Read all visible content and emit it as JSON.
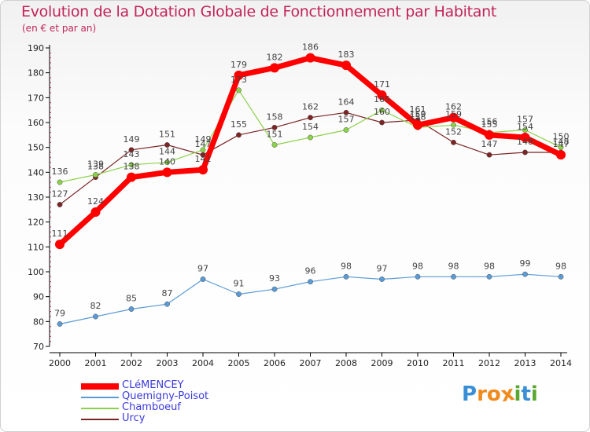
{
  "chart_data": {
    "type": "line",
    "title": "Evolution de la Dotation Globale de Fonctionnement par Habitant",
    "subtitle": "(en € et par an)",
    "xlabel": "",
    "ylabel": "",
    "ylim": [
      70,
      190
    ],
    "yticks": [
      70,
      80,
      90,
      100,
      110,
      120,
      130,
      140,
      150,
      160,
      170,
      180,
      190
    ],
    "x": [
      "2000",
      "2001",
      "2002",
      "2003",
      "2004",
      "2005",
      "2006",
      "2007",
      "2008",
      "2009",
      "2010",
      "2011",
      "2012",
      "2013",
      "2014"
    ],
    "grid": false,
    "legend_position": "bottom-left",
    "series": [
      {
        "name": "Urcy",
        "color": "#7b2424",
        "values": [
          127,
          138,
          149,
          151,
          147,
          155,
          158,
          162,
          164,
          160,
          161,
          152,
          147,
          148,
          148
        ]
      },
      {
        "name": "Chamboeuf",
        "color": "#8cd14a",
        "values": [
          136,
          139,
          143,
          144,
          149,
          173,
          151,
          154,
          157,
          165,
          158,
          159,
          156,
          157,
          150
        ]
      },
      {
        "name": "Quemigny-Poisot",
        "color": "#5b9bd5",
        "values": [
          79,
          82,
          85,
          87,
          97,
          91,
          93,
          96,
          98,
          97,
          98,
          98,
          98,
          99,
          98
        ]
      },
      {
        "name": "CLéMENCEY",
        "color": "#ff0000",
        "values": [
          111,
          124,
          138,
          140,
          141,
          179,
          182,
          186,
          183,
          171,
          159,
          162,
          155,
          154,
          147
        ]
      }
    ],
    "legend": [
      "CLéMENCEY",
      "Quemigny-Poisot",
      "Chamboeuf",
      "Urcy"
    ]
  },
  "brand": {
    "letters": [
      "P",
      "r",
      "o",
      "x",
      "i",
      "t",
      "i"
    ],
    "colors": [
      "#3a8fd6",
      "#f08a1c",
      "#f08a1c",
      "#f08a1c",
      "#5aa832",
      "#3a8fd6",
      "#5aa832"
    ]
  },
  "colors": {
    "title": "#c2245a",
    "axis": "#000000"
  }
}
